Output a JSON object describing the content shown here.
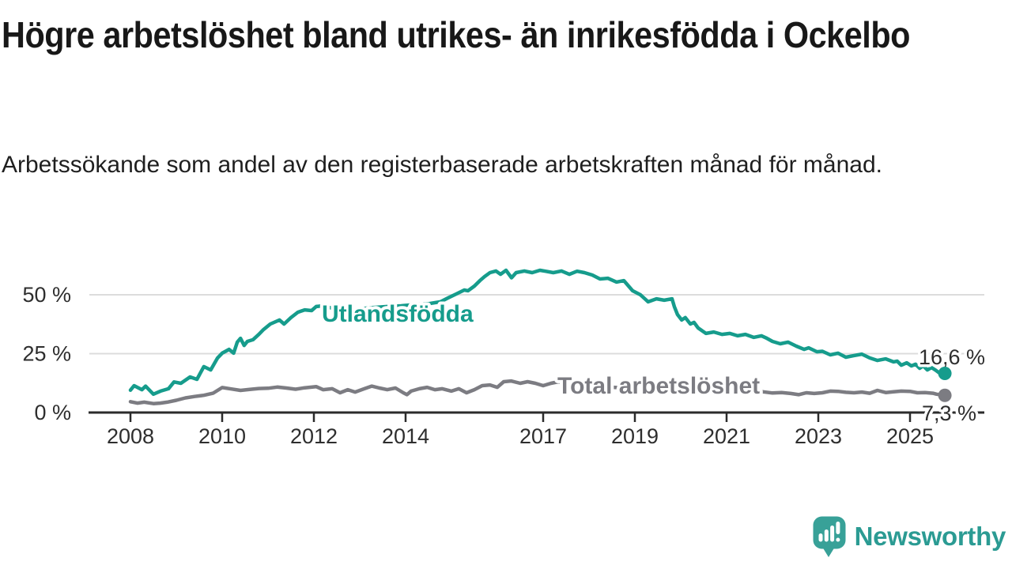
{
  "header": {
    "title": "Högre arbetslöshet bland utrikes- än inrikesfödda i Ockelbo",
    "subtitle": "Arbetssökande som andel av den registerbaserade arbetskraften månad för månad."
  },
  "branding": {
    "name": "Newsworthy",
    "icon": "speech-bubble-bar-chart",
    "color": "#2b9b93",
    "icon_color": "#38a198"
  },
  "colors": {
    "series_foreign_born": "#169c8c",
    "series_total": "#7c7c82",
    "grid": "#dcdcdc",
    "axis": "#2b2b2b",
    "tick_text": "#2e2e2e",
    "title_text": "#181818"
  },
  "chart_data": {
    "type": "line",
    "title": "Högre arbetslöshet bland utrikes- än inrikesfödda i Ockelbo",
    "subtitle": "Arbetssökande som andel av den registerbaserade arbetskraften månad för månad.",
    "xlabel": "",
    "ylabel": "",
    "unit": "%",
    "grid": "horizontal",
    "legend_position": "inline-labels",
    "x_range": [
      2008,
      2025.8
    ],
    "ylim": [
      0,
      63
    ],
    "x_ticks": [
      2008,
      2010,
      2012,
      2014,
      2017,
      2019,
      2021,
      2023,
      2025
    ],
    "y_ticks": [
      {
        "value": 0,
        "label": "0 %"
      },
      {
        "value": 25,
        "label": "25 %"
      },
      {
        "value": 50,
        "label": "50 %"
      }
    ],
    "series": [
      {
        "name": "Utlandsfödda",
        "color": "#169c8c",
        "end_label": "16,6 %",
        "end_value": 16.6,
        "points": [
          [
            2008.0,
            9.5
          ],
          [
            2008.08,
            11.4
          ],
          [
            2008.25,
            9.7
          ],
          [
            2008.33,
            11.2
          ],
          [
            2008.5,
            7.8
          ],
          [
            2008.67,
            9.2
          ],
          [
            2008.83,
            10.1
          ],
          [
            2008.95,
            13.0
          ],
          [
            2009.1,
            12.4
          ],
          [
            2009.3,
            15.1
          ],
          [
            2009.45,
            14.1
          ],
          [
            2009.6,
            19.5
          ],
          [
            2009.75,
            18.1
          ],
          [
            2009.9,
            23.2
          ],
          [
            2010.0,
            25.2
          ],
          [
            2010.15,
            26.8
          ],
          [
            2010.25,
            25.2
          ],
          [
            2010.33,
            29.9
          ],
          [
            2010.4,
            31.5
          ],
          [
            2010.48,
            28.5
          ],
          [
            2010.55,
            30.2
          ],
          [
            2010.67,
            30.9
          ],
          [
            2010.8,
            33.2
          ],
          [
            2010.9,
            35.2
          ],
          [
            2011.05,
            37.6
          ],
          [
            2011.25,
            39.3
          ],
          [
            2011.35,
            37.6
          ],
          [
            2011.5,
            40.3
          ],
          [
            2011.65,
            42.6
          ],
          [
            2011.8,
            43.6
          ],
          [
            2011.95,
            43.3
          ],
          [
            2012.05,
            45.0
          ],
          [
            2012.2,
            45.3
          ],
          [
            2012.4,
            44.3
          ],
          [
            2012.5,
            42.6
          ],
          [
            2012.65,
            43.6
          ],
          [
            2012.8,
            43.0
          ],
          [
            2013.0,
            44.0
          ],
          [
            2013.3,
            44.6
          ],
          [
            2013.6,
            45.0
          ],
          [
            2013.9,
            45.3
          ],
          [
            2014.2,
            45.8
          ],
          [
            2014.5,
            46.2
          ],
          [
            2014.76,
            47.0
          ],
          [
            2014.93,
            48.7
          ],
          [
            2015.1,
            50.3
          ],
          [
            2015.28,
            52.0
          ],
          [
            2015.36,
            51.7
          ],
          [
            2015.5,
            53.7
          ],
          [
            2015.62,
            56.0
          ],
          [
            2015.72,
            57.7
          ],
          [
            2015.84,
            59.4
          ],
          [
            2015.97,
            60.1
          ],
          [
            2016.07,
            58.7
          ],
          [
            2016.19,
            60.4
          ],
          [
            2016.31,
            57.2
          ],
          [
            2016.41,
            59.4
          ],
          [
            2016.59,
            60.1
          ],
          [
            2016.76,
            59.4
          ],
          [
            2016.93,
            60.4
          ],
          [
            2017.05,
            60.0
          ],
          [
            2017.22,
            59.4
          ],
          [
            2017.4,
            60.1
          ],
          [
            2017.57,
            58.7
          ],
          [
            2017.74,
            60.0
          ],
          [
            2017.9,
            59.4
          ],
          [
            2018.07,
            58.4
          ],
          [
            2018.24,
            56.7
          ],
          [
            2018.41,
            57.0
          ],
          [
            2018.6,
            55.4
          ],
          [
            2018.76,
            56.0
          ],
          [
            2018.95,
            51.7
          ],
          [
            2019.12,
            50.0
          ],
          [
            2019.29,
            47.0
          ],
          [
            2019.47,
            48.3
          ],
          [
            2019.64,
            47.7
          ],
          [
            2019.81,
            48.3
          ],
          [
            2019.86,
            45.0
          ],
          [
            2019.93,
            41.6
          ],
          [
            2020.02,
            39.3
          ],
          [
            2020.1,
            40.3
          ],
          [
            2020.21,
            37.6
          ],
          [
            2020.29,
            38.3
          ],
          [
            2020.38,
            35.9
          ],
          [
            2020.55,
            33.6
          ],
          [
            2020.72,
            34.2
          ],
          [
            2020.9,
            33.2
          ],
          [
            2021.07,
            33.6
          ],
          [
            2021.24,
            32.6
          ],
          [
            2021.41,
            33.2
          ],
          [
            2021.59,
            31.9
          ],
          [
            2021.76,
            32.6
          ],
          [
            2021.88,
            31.5
          ],
          [
            2022.0,
            30.2
          ],
          [
            2022.17,
            29.2
          ],
          [
            2022.34,
            29.9
          ],
          [
            2022.52,
            28.2
          ],
          [
            2022.69,
            26.8
          ],
          [
            2022.79,
            27.5
          ],
          [
            2022.97,
            25.8
          ],
          [
            2023.09,
            26.0
          ],
          [
            2023.26,
            24.5
          ],
          [
            2023.43,
            25.2
          ],
          [
            2023.6,
            23.5
          ],
          [
            2023.78,
            24.2
          ],
          [
            2023.95,
            24.8
          ],
          [
            2024.12,
            23.2
          ],
          [
            2024.29,
            22.1
          ],
          [
            2024.47,
            22.8
          ],
          [
            2024.64,
            21.5
          ],
          [
            2024.72,
            21.8
          ],
          [
            2024.81,
            20.1
          ],
          [
            2024.93,
            21.1
          ],
          [
            2025.03,
            19.8
          ],
          [
            2025.12,
            20.5
          ],
          [
            2025.21,
            18.8
          ],
          [
            2025.29,
            19.8
          ],
          [
            2025.38,
            18.1
          ],
          [
            2025.47,
            19.1
          ],
          [
            2025.55,
            18.1
          ],
          [
            2025.64,
            16.8
          ],
          [
            2025.76,
            16.6
          ]
        ]
      },
      {
        "name": "Total arbetslöshet",
        "color": "#7c7c82",
        "end_label": "7,3 %",
        "end_value": 7.3,
        "points": [
          [
            2008.0,
            4.6
          ],
          [
            2008.15,
            4.0
          ],
          [
            2008.3,
            4.4
          ],
          [
            2008.5,
            3.8
          ],
          [
            2008.65,
            4.0
          ],
          [
            2008.8,
            4.4
          ],
          [
            2009.0,
            5.2
          ],
          [
            2009.2,
            6.2
          ],
          [
            2009.4,
            6.8
          ],
          [
            2009.6,
            7.3
          ],
          [
            2009.8,
            8.2
          ],
          [
            2010.0,
            10.6
          ],
          [
            2010.2,
            10.0
          ],
          [
            2010.4,
            9.4
          ],
          [
            2010.6,
            9.8
          ],
          [
            2010.8,
            10.2
          ],
          [
            2011.0,
            10.3
          ],
          [
            2011.2,
            10.8
          ],
          [
            2011.4,
            10.4
          ],
          [
            2011.6,
            9.9
          ],
          [
            2011.8,
            10.5
          ],
          [
            2012.05,
            11.0
          ],
          [
            2012.2,
            9.7
          ],
          [
            2012.4,
            10.1
          ],
          [
            2012.57,
            8.4
          ],
          [
            2012.74,
            9.7
          ],
          [
            2012.9,
            8.7
          ],
          [
            2013.1,
            10.1
          ],
          [
            2013.26,
            11.2
          ],
          [
            2013.43,
            10.4
          ],
          [
            2013.6,
            9.7
          ],
          [
            2013.78,
            10.4
          ],
          [
            2013.95,
            8.4
          ],
          [
            2014.03,
            7.6
          ],
          [
            2014.12,
            9.1
          ],
          [
            2014.3,
            10.1
          ],
          [
            2014.47,
            10.7
          ],
          [
            2014.64,
            9.7
          ],
          [
            2014.8,
            10.1
          ],
          [
            2015.0,
            9.1
          ],
          [
            2015.16,
            10.1
          ],
          [
            2015.33,
            8.4
          ],
          [
            2015.5,
            9.7
          ],
          [
            2015.67,
            11.4
          ],
          [
            2015.84,
            11.7
          ],
          [
            2016.0,
            10.7
          ],
          [
            2016.14,
            13.1
          ],
          [
            2016.3,
            13.4
          ],
          [
            2016.5,
            12.4
          ],
          [
            2016.66,
            13.1
          ],
          [
            2016.83,
            12.4
          ],
          [
            2017.0,
            11.4
          ],
          [
            2017.17,
            12.4
          ],
          [
            2017.34,
            13.1
          ],
          [
            2017.5,
            12.4
          ],
          [
            2017.75,
            12.0
          ],
          [
            2018.0,
            11.5
          ],
          [
            2018.3,
            11.0
          ],
          [
            2018.6,
            10.6
          ],
          [
            2019.0,
            10.2
          ],
          [
            2019.3,
            9.9
          ],
          [
            2019.6,
            9.7
          ],
          [
            2019.9,
            10.0
          ],
          [
            2020.2,
            10.2
          ],
          [
            2020.5,
            9.8
          ],
          [
            2020.8,
            9.4
          ],
          [
            2021.0,
            9.0
          ],
          [
            2021.2,
            8.6
          ],
          [
            2021.4,
            9.0
          ],
          [
            2021.6,
            8.5
          ],
          [
            2021.8,
            8.8
          ],
          [
            2022.0,
            8.3
          ],
          [
            2022.2,
            8.5
          ],
          [
            2022.4,
            8.1
          ],
          [
            2022.57,
            7.6
          ],
          [
            2022.74,
            8.4
          ],
          [
            2022.91,
            8.1
          ],
          [
            2023.09,
            8.4
          ],
          [
            2023.26,
            9.1
          ],
          [
            2023.43,
            9.0
          ],
          [
            2023.6,
            8.6
          ],
          [
            2023.78,
            8.4
          ],
          [
            2023.95,
            8.7
          ],
          [
            2024.12,
            8.2
          ],
          [
            2024.29,
            9.4
          ],
          [
            2024.47,
            8.5
          ],
          [
            2024.64,
            8.8
          ],
          [
            2024.81,
            9.1
          ],
          [
            2025.0,
            9.0
          ],
          [
            2025.16,
            8.4
          ],
          [
            2025.33,
            8.5
          ],
          [
            2025.5,
            8.2
          ],
          [
            2025.58,
            7.8
          ],
          [
            2025.76,
            7.3
          ]
        ]
      }
    ]
  }
}
